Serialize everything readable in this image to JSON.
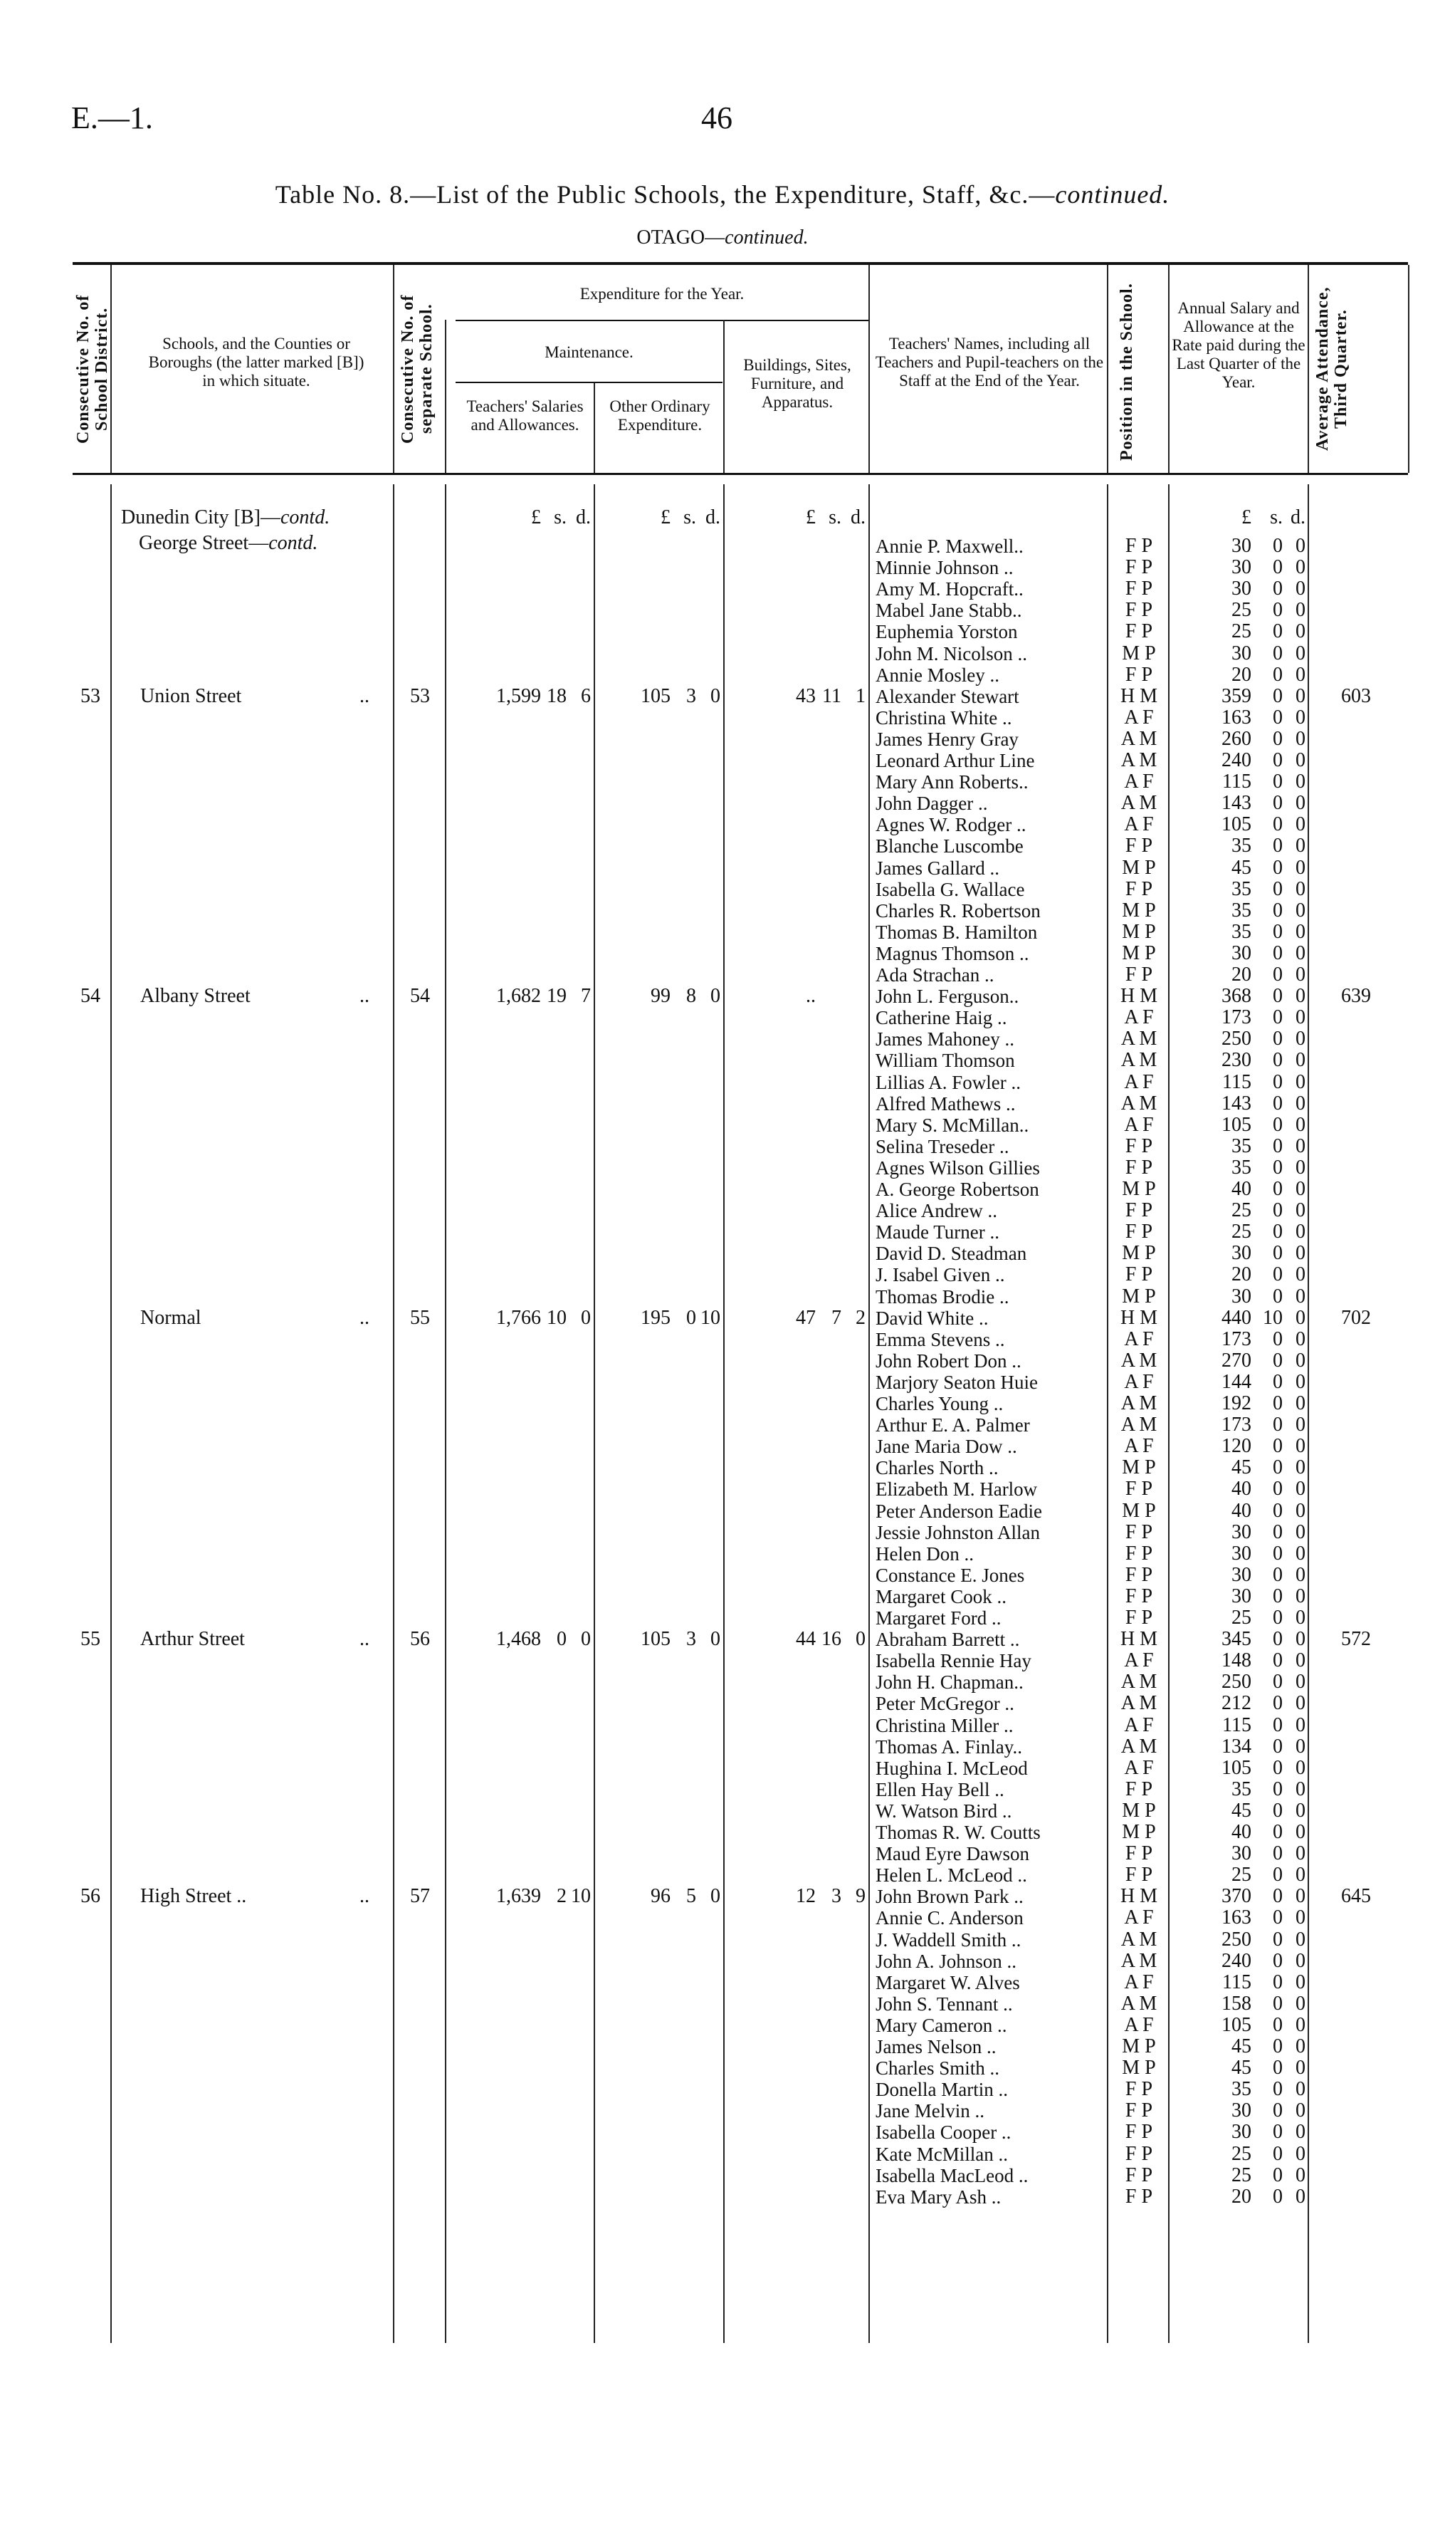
{
  "page": {
    "ref": "E.—1.",
    "number": "46"
  },
  "title": "Table No. 8.—List of the Public Schools, the Expenditure, Staff, &c.—continued.",
  "subtitle": "OTAGO—continued.",
  "headers": {
    "district_no": "Consecutive No. of School District.",
    "schools": "Schools, and the Counties or Boroughs (the latter marked [B]) in which situate.",
    "school_no": "Consecutive No. of separate School.",
    "expenditure": "Expenditure for the Year.",
    "maintenance": "Maintenance.",
    "salaries": "Teachers' Salaries and Allowances.",
    "other": "Other Ordinary Expenditure.",
    "buildings": "Buildings, Sites, Furniture, and Apparatus.",
    "names": "Teachers' Names, including all Teachers and Pupil-teachers on the Staff at the End of the Year.",
    "position": "Position in the School.",
    "salary": "Annual Salary and Allowance at the Rate paid during the Last Quarter of the Year.",
    "attendance": "Average Attendance, Third Quarter."
  },
  "units": {
    "pound": "£",
    "shilling": "s.",
    "pence": "d."
  },
  "district_heading": "Dunedin City [B]—contd.",
  "schools": [
    {
      "district_no": "",
      "name": "George Street—contd.",
      "school_no": "",
      "salaries": [
        "",
        "",
        ""
      ],
      "other": [
        "",
        "",
        ""
      ],
      "buildings": [
        "",
        "",
        ""
      ],
      "attendance": "",
      "teachers": [
        [
          "Annie P. Maxwell..",
          "F P",
          "30",
          "0",
          "0"
        ],
        [
          "Minnie Johnson ..",
          "F P",
          "30",
          "0",
          "0"
        ],
        [
          "Amy M. Hopcraft..",
          "F P",
          "30",
          "0",
          "0"
        ],
        [
          "Mabel Jane Stabb..",
          "F P",
          "25",
          "0",
          "0"
        ],
        [
          "Euphemia Yorston",
          "F P",
          "25",
          "0",
          "0"
        ],
        [
          "John M. Nicolson ..",
          "M P",
          "30",
          "0",
          "0"
        ],
        [
          "Annie Mosley ..",
          "F P",
          "20",
          "0",
          "0"
        ]
      ]
    },
    {
      "district_no": "53",
      "name": "Union Street",
      "school_no": "53",
      "salaries": [
        "1,599",
        "18",
        "6"
      ],
      "other": [
        "105",
        "3",
        "0"
      ],
      "buildings": [
        "43",
        "11",
        "1"
      ],
      "attendance": "603",
      "teachers": [
        [
          "Alexander Stewart",
          "H M",
          "359",
          "0",
          "0"
        ],
        [
          "Christina White ..",
          "A F",
          "163",
          "0",
          "0"
        ],
        [
          "James Henry Gray",
          "A M",
          "260",
          "0",
          "0"
        ],
        [
          "Leonard Arthur Line",
          "A M",
          "240",
          "0",
          "0"
        ],
        [
          "Mary Ann Roberts..",
          "A F",
          "115",
          "0",
          "0"
        ],
        [
          "John Dagger ..",
          "A M",
          "143",
          "0",
          "0"
        ],
        [
          "Agnes W. Rodger ..",
          "A F",
          "105",
          "0",
          "0"
        ],
        [
          "Blanche Luscombe",
          "F P",
          "35",
          "0",
          "0"
        ],
        [
          "James Gallard ..",
          "M P",
          "45",
          "0",
          "0"
        ],
        [
          "Isabella G. Wallace",
          "F P",
          "35",
          "0",
          "0"
        ],
        [
          "Charles R. Robertson",
          "M P",
          "35",
          "0",
          "0"
        ],
        [
          "Thomas B. Hamilton",
          "M P",
          "35",
          "0",
          "0"
        ],
        [
          "Magnus Thomson ..",
          "M P",
          "30",
          "0",
          "0"
        ],
        [
          "Ada Strachan ..",
          "F P",
          "20",
          "0",
          "0"
        ]
      ]
    },
    {
      "district_no": "54",
      "name": "Albany Street",
      "school_no": "54",
      "salaries": [
        "1,682",
        "19",
        "7"
      ],
      "other": [
        "99",
        "8",
        "0"
      ],
      "buildings": [
        "..",
        "",
        ""
      ],
      "attendance": "639",
      "teachers": [
        [
          "John L. Ferguson..",
          "H M",
          "368",
          "0",
          "0"
        ],
        [
          "Catherine Haig ..",
          "A F",
          "173",
          "0",
          "0"
        ],
        [
          "James Mahoney ..",
          "A M",
          "250",
          "0",
          "0"
        ],
        [
          "William Thomson",
          "A M",
          "230",
          "0",
          "0"
        ],
        [
          "Lillias A. Fowler ..",
          "A F",
          "115",
          "0",
          "0"
        ],
        [
          "Alfred Mathews ..",
          "A M",
          "143",
          "0",
          "0"
        ],
        [
          "Mary S. McMillan..",
          "A F",
          "105",
          "0",
          "0"
        ],
        [
          "Selina Treseder ..",
          "F P",
          "35",
          "0",
          "0"
        ],
        [
          "Agnes Wilson Gillies",
          "F P",
          "35",
          "0",
          "0"
        ],
        [
          "A. George Robertson",
          "M P",
          "40",
          "0",
          "0"
        ],
        [
          "Alice Andrew ..",
          "F P",
          "25",
          "0",
          "0"
        ],
        [
          "Maude Turner ..",
          "F P",
          "25",
          "0",
          "0"
        ],
        [
          "David D. Steadman",
          "M P",
          "30",
          "0",
          "0"
        ],
        [
          "J. Isabel Given ..",
          "F P",
          "20",
          "0",
          "0"
        ],
        [
          "Thomas Brodie ..",
          "M P",
          "30",
          "0",
          "0"
        ]
      ]
    },
    {
      "district_no": "",
      "name": "Normal",
      "school_no": "55",
      "salaries": [
        "1,766",
        "10",
        "0"
      ],
      "other": [
        "195",
        "0",
        "10"
      ],
      "buildings": [
        "47",
        "7",
        "2"
      ],
      "attendance": "702",
      "teachers": [
        [
          "David White ..",
          "H M",
          "440",
          "10",
          "0"
        ],
        [
          "Emma Stevens ..",
          "A F",
          "173",
          "0",
          "0"
        ],
        [
          "John Robert Don ..",
          "A M",
          "270",
          "0",
          "0"
        ],
        [
          "Marjory Seaton Huie",
          "A F",
          "144",
          "0",
          "0"
        ],
        [
          "Charles Young ..",
          "A M",
          "192",
          "0",
          "0"
        ],
        [
          "Arthur E. A. Palmer",
          "A M",
          "173",
          "0",
          "0"
        ],
        [
          "Jane Maria Dow ..",
          "A F",
          "120",
          "0",
          "0"
        ],
        [
          "Charles North ..",
          "M P",
          "45",
          "0",
          "0"
        ],
        [
          "Elizabeth M. Harlow",
          "F P",
          "40",
          "0",
          "0"
        ],
        [
          "Peter Anderson Eadie",
          "M P",
          "40",
          "0",
          "0"
        ],
        [
          "Jessie Johnston Allan",
          "F P",
          "30",
          "0",
          "0"
        ],
        [
          "Helen Don ..",
          "F P",
          "30",
          "0",
          "0"
        ],
        [
          "Constance E. Jones",
          "F P",
          "30",
          "0",
          "0"
        ],
        [
          "Margaret Cook ..",
          "F P",
          "30",
          "0",
          "0"
        ],
        [
          "Margaret Ford ..",
          "F P",
          "25",
          "0",
          "0"
        ]
      ]
    },
    {
      "district_no": "55",
      "name": "Arthur Street",
      "school_no": "56",
      "salaries": [
        "1,468",
        "0",
        "0"
      ],
      "other": [
        "105",
        "3",
        "0"
      ],
      "buildings": [
        "44",
        "16",
        "0"
      ],
      "attendance": "572",
      "teachers": [
        [
          "Abraham Barrett ..",
          "H M",
          "345",
          "0",
          "0"
        ],
        [
          "Isabella Rennie Hay",
          "A F",
          "148",
          "0",
          "0"
        ],
        [
          "John H. Chapman..",
          "A M",
          "250",
          "0",
          "0"
        ],
        [
          "Peter McGregor ..",
          "A M",
          "212",
          "0",
          "0"
        ],
        [
          "Christina Miller ..",
          "A F",
          "115",
          "0",
          "0"
        ],
        [
          "Thomas A. Finlay..",
          "A M",
          "134",
          "0",
          "0"
        ],
        [
          "Hughina I. McLeod",
          "A F",
          "105",
          "0",
          "0"
        ],
        [
          "Ellen Hay Bell ..",
          "F P",
          "35",
          "0",
          "0"
        ],
        [
          "W. Watson Bird ..",
          "M P",
          "45",
          "0",
          "0"
        ],
        [
          "Thomas R. W. Coutts",
          "M P",
          "40",
          "0",
          "0"
        ],
        [
          "Maud Eyre Dawson",
          "F P",
          "30",
          "0",
          "0"
        ],
        [
          "Helen L. McLeod ..",
          "F P",
          "25",
          "0",
          "0"
        ]
      ]
    },
    {
      "district_no": "56",
      "name": "High Street ..",
      "school_no": "57",
      "salaries": [
        "1,639",
        "2",
        "10"
      ],
      "other": [
        "96",
        "5",
        "0"
      ],
      "buildings": [
        "12",
        "3",
        "9"
      ],
      "attendance": "645",
      "teachers": [
        [
          "John Brown Park ..",
          "H M",
          "370",
          "0",
          "0"
        ],
        [
          "Annie C. Anderson",
          "A F",
          "163",
          "0",
          "0"
        ],
        [
          "J. Waddell Smith ..",
          "A M",
          "250",
          "0",
          "0"
        ],
        [
          "John A. Johnson ..",
          "A M",
          "240",
          "0",
          "0"
        ],
        [
          "Margaret W. Alves",
          "A F",
          "115",
          "0",
          "0"
        ],
        [
          "John S. Tennant ..",
          "A M",
          "158",
          "0",
          "0"
        ],
        [
          "Mary Cameron ..",
          "A F",
          "105",
          "0",
          "0"
        ],
        [
          "James Nelson ..",
          "M P",
          "45",
          "0",
          "0"
        ],
        [
          "Charles Smith ..",
          "M P",
          "45",
          "0",
          "0"
        ],
        [
          "Donella Martin ..",
          "F P",
          "35",
          "0",
          "0"
        ],
        [
          "Jane Melvin ..",
          "F P",
          "30",
          "0",
          "0"
        ],
        [
          "Isabella Cooper ..",
          "F P",
          "30",
          "0",
          "0"
        ],
        [
          "Kate McMillan ..",
          "F P",
          "25",
          "0",
          "0"
        ],
        [
          "Isabella MacLeod ..",
          "F P",
          "25",
          "0",
          "0"
        ],
        [
          "Eva Mary Ash ..",
          "F P",
          "20",
          "0",
          "0"
        ]
      ]
    }
  ]
}
